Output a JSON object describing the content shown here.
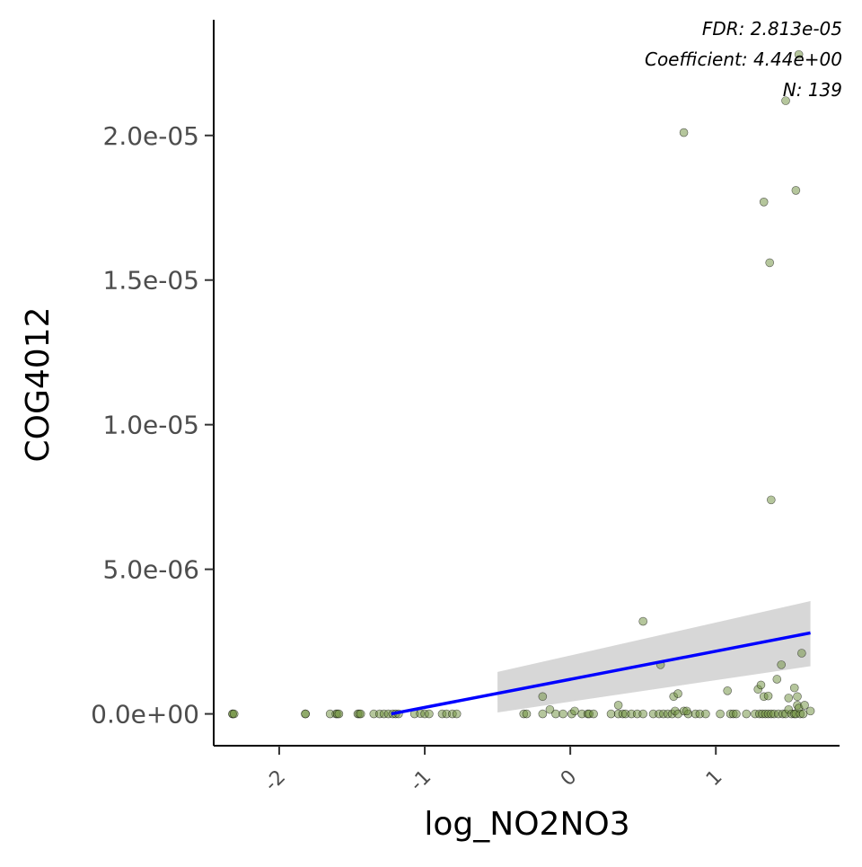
{
  "chart_data": {
    "type": "scatter",
    "xlabel": "log_NO2NO3",
    "ylabel": "COG4012",
    "xlim": [
      -2.45,
      1.85
    ],
    "ylim": [
      -1.1e-06,
      2.4e-05
    ],
    "x_ticks": [
      -2,
      -1,
      0,
      1
    ],
    "x_tick_labels": [
      "-2",
      "-1",
      "0",
      "1"
    ],
    "y_ticks": [
      0,
      5e-06,
      1e-05,
      1.5e-05,
      2e-05
    ],
    "y_tick_labels": [
      "0.0e+00",
      "5.0e-06",
      "1.0e-05",
      "1.5e-05",
      "2.0e-05"
    ],
    "annotations": [
      "FDR: 2.813e-05",
      "Coefficient: 4.44e+00",
      "N: 139"
    ],
    "points": {
      "x": [
        -2.32,
        -2.32,
        -2.31,
        -1.82,
        -1.82,
        -1.65,
        -1.61,
        -1.6,
        -1.59,
        -1.46,
        -1.45,
        -1.44,
        -1.35,
        -1.31,
        -1.28,
        -1.25,
        -1.22,
        -1.2,
        -1.18,
        -1.07,
        -1.03,
        -1.0,
        -0.97,
        -0.88,
        -0.85,
        -0.81,
        -0.78,
        -0.32,
        -0.3,
        -0.19,
        -0.14,
        -0.1,
        -0.05,
        0.01,
        0.03,
        0.08,
        0.12,
        0.13,
        0.16,
        0.28,
        0.33,
        0.36,
        0.38,
        0.42,
        0.46,
        0.5,
        0.57,
        0.61,
        0.64,
        0.67,
        0.7,
        0.72,
        0.74,
        0.78,
        0.81,
        0.86,
        0.89,
        0.93,
        1.03,
        1.1,
        1.12,
        1.14,
        1.21,
        1.27,
        1.3,
        1.32,
        1.34,
        1.36,
        1.38,
        1.4,
        1.43,
        1.46,
        1.48,
        1.5,
        1.52,
        1.54,
        1.55,
        1.56,
        1.57,
        1.58,
        1.6,
        1.61,
        1.65,
        -0.19,
        0.33,
        0.62,
        0.71,
        0.74,
        0.8,
        1.08,
        1.29,
        1.31,
        1.33,
        1.36,
        1.42,
        1.45,
        1.5,
        1.54,
        1.56,
        1.59,
        0.5,
        1.38,
        1.37,
        1.33,
        1.55,
        0.78,
        1.48,
        1.57
      ],
      "y": [
        0,
        0,
        0,
        0,
        0,
        0,
        0,
        0,
        0,
        0,
        0,
        0,
        0,
        0,
        0,
        0,
        0,
        0,
        0,
        0,
        1e-08,
        0,
        0,
        0,
        0,
        0,
        0,
        0,
        0,
        0,
        1.5e-07,
        0,
        0,
        0,
        1e-07,
        0,
        0,
        0,
        0,
        0,
        0,
        0,
        0,
        0,
        0,
        0,
        0,
        0,
        0,
        0,
        0,
        1e-07,
        0,
        1e-07,
        0,
        0,
        0,
        0,
        0,
        0,
        0,
        0,
        0,
        0,
        0,
        0,
        0,
        0,
        0,
        0,
        0,
        0,
        0,
        1.5e-07,
        0,
        0,
        0,
        3e-07,
        2e-07,
        0,
        0,
        3e-07,
        1e-07,
        6e-07,
        3e-07,
        1.7e-06,
        6e-07,
        7e-07,
        1e-07,
        8e-07,
        8.5e-07,
        1e-06,
        6e-07,
        6.2e-07,
        1.2e-06,
        1.7e-06,
        5.5e-07,
        9e-07,
        6e-07,
        2.1e-06,
        3.2e-06,
        7.4e-06,
        1.56e-05,
        1.77e-05,
        1.81e-05,
        2.01e-05,
        2.12e-05,
        2.28e-05
      ],
      "color": "#6b8e3a",
      "edge_color": "#000000"
    },
    "trend_line": {
      "x": [
        -1.23,
        1.65
      ],
      "y": [
        0,
        2.8e-06
      ],
      "color": "#0000ff"
    },
    "confidence_band": {
      "x": [
        -0.5,
        1.65
      ],
      "upper": [
        1.45e-06,
        3.9e-06
      ],
      "lower": [
        5e-08,
        1.65e-06
      ],
      "color": "#d3d3d3"
    }
  }
}
